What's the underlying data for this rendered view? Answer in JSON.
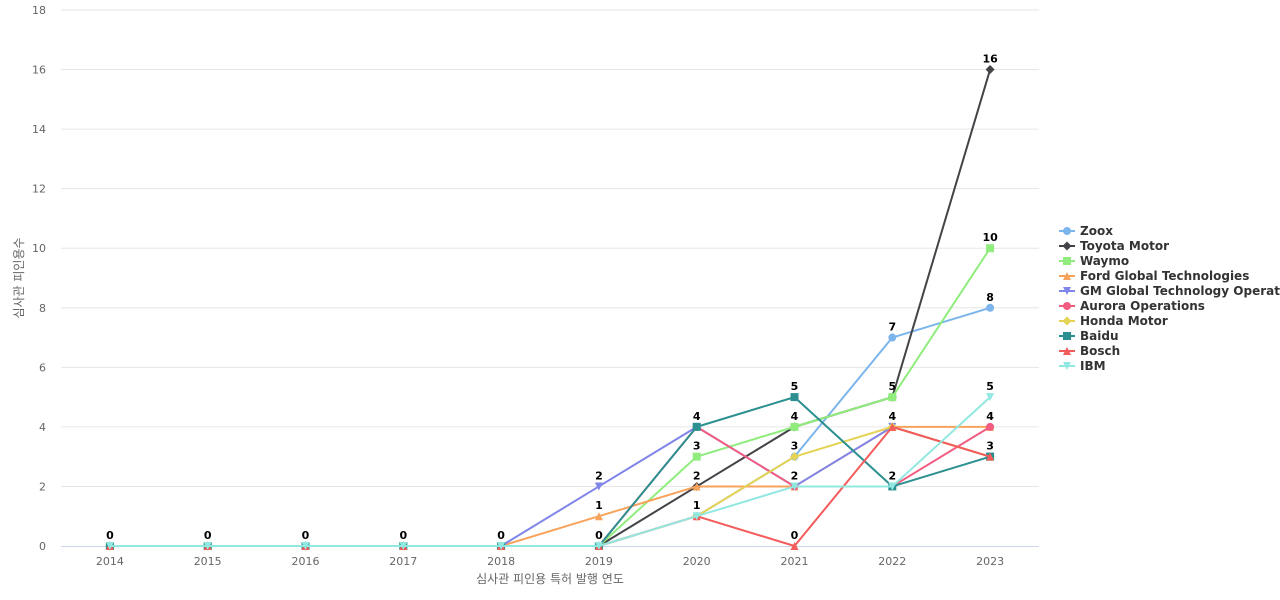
{
  "chart_data": {
    "type": "line",
    "title": "",
    "xlabel": "심사관 피인용 특허 발행 연도",
    "ylabel": "심사관 피인용수",
    "x": [
      "2014",
      "2015",
      "2016",
      "2017",
      "2018",
      "2019",
      "2020",
      "2021",
      "2022",
      "2023"
    ],
    "ylim": [
      0,
      18
    ],
    "yticks": [
      0,
      2,
      4,
      6,
      8,
      10,
      12,
      14,
      16,
      18
    ],
    "grid": true,
    "legend_position": "right",
    "series": [
      {
        "name": "Zoox",
        "color": "#7cb5ec",
        "marker": "circle",
        "values": [
          0,
          0,
          0,
          0,
          0,
          0,
          1,
          3,
          7,
          8
        ]
      },
      {
        "name": "Toyota Motor",
        "color": "#434348",
        "marker": "diamond",
        "values": [
          0,
          0,
          0,
          0,
          0,
          0,
          2,
          4,
          5,
          16
        ]
      },
      {
        "name": "Waymo",
        "color": "#90ed7d",
        "marker": "square",
        "values": [
          0,
          0,
          0,
          0,
          0,
          0,
          3,
          4,
          5,
          10
        ]
      },
      {
        "name": "Ford Global Technologies",
        "color": "#f7a35c",
        "marker": "triangle",
        "values": [
          0,
          0,
          0,
          0,
          0,
          1,
          2,
          2,
          4,
          4
        ]
      },
      {
        "name": "GM Global Technology Operat...",
        "color": "#8085e9",
        "marker": "triangle-down",
        "values": [
          0,
          0,
          0,
          0,
          0,
          2,
          4,
          2,
          4,
          3
        ]
      },
      {
        "name": "Aurora Operations",
        "color": "#f15c80",
        "marker": "circle",
        "values": [
          0,
          0,
          0,
          0,
          0,
          0,
          4,
          2,
          2,
          4
        ]
      },
      {
        "name": "Honda Motor",
        "color": "#e4d354",
        "marker": "diamond",
        "values": [
          0,
          0,
          0,
          0,
          0,
          0,
          1,
          3,
          4,
          3
        ]
      },
      {
        "name": "Baidu",
        "color": "#2b908f",
        "marker": "square",
        "values": [
          0,
          0,
          0,
          0,
          0,
          0,
          4,
          5,
          2,
          3
        ]
      },
      {
        "name": "Bosch",
        "color": "#f45b5b",
        "marker": "triangle",
        "values": [
          0,
          0,
          0,
          0,
          0,
          0,
          1,
          0,
          4,
          3
        ]
      },
      {
        "name": "IBM",
        "color": "#91e8e1",
        "marker": "triangle-down",
        "values": [
          0,
          0,
          0,
          0,
          0,
          0,
          1,
          2,
          2,
          5
        ]
      }
    ],
    "data_labels": [
      {
        "x": "2014",
        "value": 0
      },
      {
        "x": "2015",
        "value": 0
      },
      {
        "x": "2016",
        "value": 0
      },
      {
        "x": "2017",
        "value": 0
      },
      {
        "x": "2018",
        "value": 0
      },
      {
        "x": "2019",
        "value": 0
      },
      {
        "x": "2019",
        "value": 1
      },
      {
        "x": "2019",
        "value": 2
      },
      {
        "x": "2020",
        "value": 1
      },
      {
        "x": "2020",
        "value": 2
      },
      {
        "x": "2020",
        "value": 3
      },
      {
        "x": "2020",
        "value": 4
      },
      {
        "x": "2021",
        "value": 0
      },
      {
        "x": "2021",
        "value": 2
      },
      {
        "x": "2021",
        "value": 3
      },
      {
        "x": "2021",
        "value": 4
      },
      {
        "x": "2021",
        "value": 5
      },
      {
        "x": "2022",
        "value": 2
      },
      {
        "x": "2022",
        "value": 4
      },
      {
        "x": "2022",
        "value": 5
      },
      {
        "x": "2022",
        "value": 7
      },
      {
        "x": "2023",
        "value": 3
      },
      {
        "x": "2023",
        "value": 4
      },
      {
        "x": "2023",
        "value": 5
      },
      {
        "x": "2023",
        "value": 8
      },
      {
        "x": "2023",
        "value": 10
      },
      {
        "x": "2023",
        "value": 16
      }
    ]
  }
}
